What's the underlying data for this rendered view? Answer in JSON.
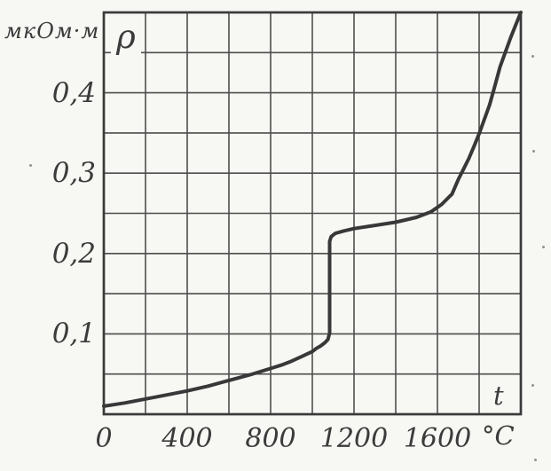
{
  "figure": {
    "paper_color": "#f7f7f4",
    "ink_color": "#3a3a3a"
  },
  "chart_data": {
    "type": "line",
    "title": "",
    "x_axis": {
      "label": "t",
      "unit_label": "°C",
      "range": [
        0,
        2000
      ],
      "grid_step": 200,
      "ticks": [
        {
          "value": 0,
          "label": "0"
        },
        {
          "value": 400,
          "label": "400"
        },
        {
          "value": 800,
          "label": "800"
        },
        {
          "value": 1200,
          "label": "1200"
        },
        {
          "value": 1600,
          "label": "1600"
        }
      ]
    },
    "y_axis": {
      "label": "ρ",
      "unit_label": "мкОм·м",
      "range": [
        0,
        0.5
      ],
      "grid_step": 0.05,
      "ticks": [
        {
          "value": 0.1,
          "label": "0,1"
        },
        {
          "value": 0.2,
          "label": "0,2"
        },
        {
          "value": 0.3,
          "label": "0,3"
        },
        {
          "value": 0.4,
          "label": "0,4"
        }
      ]
    },
    "series": [
      {
        "name": "resistivity-vs-temperature",
        "points": [
          [
            0,
            0.01
          ],
          [
            100,
            0.014
          ],
          [
            200,
            0.019
          ],
          [
            300,
            0.024
          ],
          [
            400,
            0.029
          ],
          [
            500,
            0.035
          ],
          [
            600,
            0.042
          ],
          [
            700,
            0.049
          ],
          [
            800,
            0.057
          ],
          [
            850,
            0.061
          ],
          [
            900,
            0.066
          ],
          [
            950,
            0.072
          ],
          [
            1000,
            0.078
          ],
          [
            1020,
            0.082
          ],
          [
            1040,
            0.085
          ],
          [
            1060,
            0.089
          ],
          [
            1075,
            0.093
          ],
          [
            1083,
            0.101
          ],
          [
            1083,
            0.215
          ],
          [
            1090,
            0.221
          ],
          [
            1110,
            0.225
          ],
          [
            1150,
            0.228
          ],
          [
            1200,
            0.231
          ],
          [
            1300,
            0.235
          ],
          [
            1400,
            0.239
          ],
          [
            1500,
            0.245
          ],
          [
            1570,
            0.252
          ],
          [
            1620,
            0.261
          ],
          [
            1670,
            0.274
          ],
          [
            1700,
            0.292
          ],
          [
            1725,
            0.305
          ],
          [
            1750,
            0.318
          ],
          [
            1775,
            0.333
          ],
          [
            1800,
            0.349
          ],
          [
            1825,
            0.367
          ],
          [
            1850,
            0.385
          ],
          [
            1875,
            0.408
          ],
          [
            1900,
            0.432
          ],
          [
            1925,
            0.45
          ],
          [
            1950,
            0.468
          ],
          [
            1975,
            0.484
          ],
          [
            2000,
            0.5
          ]
        ]
      }
    ]
  }
}
